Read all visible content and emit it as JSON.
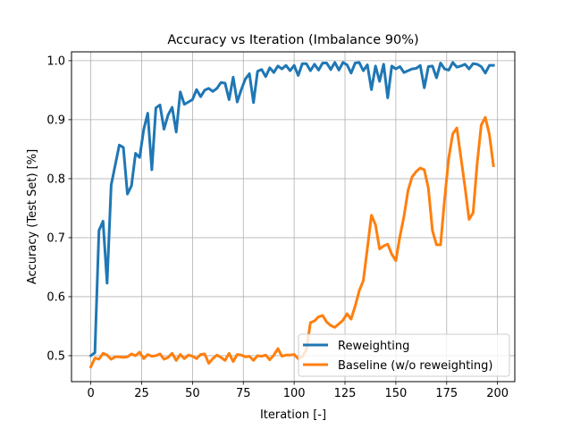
{
  "chart_data": {
    "type": "line",
    "title": "Accuracy vs Iteration (Imbalance 90%)",
    "xlabel": "Iteration [-]",
    "ylabel": "Accuracy (Test Set) [%]",
    "xlim": [
      -9.5,
      208.5
    ],
    "ylim": [
      0.456,
      1.015
    ],
    "xticks": [
      0,
      25,
      50,
      75,
      100,
      125,
      150,
      175,
      200
    ],
    "yticks": [
      0.5,
      0.6,
      0.7,
      0.8,
      0.9,
      1.0
    ],
    "xtick_labels": [
      "0",
      "25",
      "50",
      "75",
      "100",
      "125",
      "150",
      "175",
      "200"
    ],
    "ytick_labels": [
      "0.5",
      "0.6",
      "0.7",
      "0.8",
      "0.9",
      "1.0"
    ],
    "grid": true,
    "legend_position": "lower-right",
    "series": [
      {
        "name": "Reweighting",
        "color": "#1f77b4",
        "points": [
          [
            0,
            0.5
          ],
          [
            2,
            0.505
          ],
          [
            4,
            0.712
          ],
          [
            6,
            0.728
          ],
          [
            8,
            0.623
          ],
          [
            10,
            0.789
          ],
          [
            12,
            0.823
          ],
          [
            14,
            0.857
          ],
          [
            16,
            0.853
          ],
          [
            18,
            0.774
          ],
          [
            20,
            0.788
          ],
          [
            22,
            0.843
          ],
          [
            24,
            0.836
          ],
          [
            26,
            0.883
          ],
          [
            28,
            0.911
          ],
          [
            30,
            0.815
          ],
          [
            32,
            0.92
          ],
          [
            34,
            0.925
          ],
          [
            36,
            0.884
          ],
          [
            38,
            0.908
          ],
          [
            40,
            0.921
          ],
          [
            42,
            0.879
          ],
          [
            44,
            0.947
          ],
          [
            46,
            0.926
          ],
          [
            48,
            0.93
          ],
          [
            50,
            0.934
          ],
          [
            52,
            0.951
          ],
          [
            54,
            0.939
          ],
          [
            56,
            0.95
          ],
          [
            58,
            0.953
          ],
          [
            60,
            0.948
          ],
          [
            62,
            0.953
          ],
          [
            64,
            0.963
          ],
          [
            66,
            0.962
          ],
          [
            68,
            0.934
          ],
          [
            70,
            0.972
          ],
          [
            72,
            0.93
          ],
          [
            74,
            0.951
          ],
          [
            76,
            0.969
          ],
          [
            78,
            0.978
          ],
          [
            80,
            0.929
          ],
          [
            82,
            0.982
          ],
          [
            84,
            0.985
          ],
          [
            86,
            0.973
          ],
          [
            88,
            0.988
          ],
          [
            90,
            0.98
          ],
          [
            92,
            0.991
          ],
          [
            94,
            0.986
          ],
          [
            96,
            0.992
          ],
          [
            98,
            0.983
          ],
          [
            100,
            0.992
          ],
          [
            102,
            0.975
          ],
          [
            104,
            0.995
          ],
          [
            106,
            0.995
          ],
          [
            108,
            0.983
          ],
          [
            110,
            0.994
          ],
          [
            112,
            0.984
          ],
          [
            114,
            0.996
          ],
          [
            116,
            0.996
          ],
          [
            118,
            0.985
          ],
          [
            120,
            0.997
          ],
          [
            122,
            0.984
          ],
          [
            124,
            0.997
          ],
          [
            126,
            0.993
          ],
          [
            128,
            0.979
          ],
          [
            130,
            0.996
          ],
          [
            132,
            0.997
          ],
          [
            134,
            0.983
          ],
          [
            136,
            0.993
          ],
          [
            138,
            0.951
          ],
          [
            140,
            0.991
          ],
          [
            142,
            0.965
          ],
          [
            144,
            0.994
          ],
          [
            146,
            0.937
          ],
          [
            148,
            0.991
          ],
          [
            150,
            0.986
          ],
          [
            152,
            0.99
          ],
          [
            154,
            0.98
          ],
          [
            156,
            0.983
          ],
          [
            158,
            0.986
          ],
          [
            160,
            0.987
          ],
          [
            162,
            0.992
          ],
          [
            164,
            0.954
          ],
          [
            166,
            0.99
          ],
          [
            168,
            0.991
          ],
          [
            170,
            0.971
          ],
          [
            172,
            0.996
          ],
          [
            174,
            0.986
          ],
          [
            176,
            0.984
          ],
          [
            178,
            0.997
          ],
          [
            180,
            0.989
          ],
          [
            182,
            0.991
          ],
          [
            184,
            0.994
          ],
          [
            186,
            0.986
          ],
          [
            188,
            0.995
          ],
          [
            190,
            0.994
          ],
          [
            192,
            0.99
          ],
          [
            194,
            0.979
          ],
          [
            196,
            0.992
          ],
          [
            198,
            0.992
          ]
        ]
      },
      {
        "name": "Baseline (w/o reweighting)",
        "color": "#ff7f0e",
        "points": [
          [
            0,
            0.481
          ],
          [
            2,
            0.496
          ],
          [
            4,
            0.494
          ],
          [
            6,
            0.504
          ],
          [
            8,
            0.501
          ],
          [
            10,
            0.494
          ],
          [
            12,
            0.498
          ],
          [
            14,
            0.498
          ],
          [
            16,
            0.497
          ],
          [
            18,
            0.498
          ],
          [
            20,
            0.503
          ],
          [
            22,
            0.5
          ],
          [
            24,
            0.506
          ],
          [
            26,
            0.495
          ],
          [
            28,
            0.502
          ],
          [
            30,
            0.499
          ],
          [
            32,
            0.5
          ],
          [
            34,
            0.503
          ],
          [
            36,
            0.494
          ],
          [
            38,
            0.497
          ],
          [
            40,
            0.504
          ],
          [
            42,
            0.492
          ],
          [
            44,
            0.502
          ],
          [
            46,
            0.495
          ],
          [
            48,
            0.501
          ],
          [
            50,
            0.499
          ],
          [
            52,
            0.495
          ],
          [
            54,
            0.502
          ],
          [
            56,
            0.503
          ],
          [
            58,
            0.487
          ],
          [
            60,
            0.495
          ],
          [
            62,
            0.501
          ],
          [
            64,
            0.497
          ],
          [
            66,
            0.492
          ],
          [
            68,
            0.504
          ],
          [
            70,
            0.49
          ],
          [
            72,
            0.502
          ],
          [
            74,
            0.501
          ],
          [
            76,
            0.498
          ],
          [
            78,
            0.499
          ],
          [
            80,
            0.492
          ],
          [
            82,
            0.5
          ],
          [
            84,
            0.499
          ],
          [
            86,
            0.501
          ],
          [
            88,
            0.493
          ],
          [
            90,
            0.501
          ],
          [
            92,
            0.512
          ],
          [
            94,
            0.499
          ],
          [
            96,
            0.501
          ],
          [
            98,
            0.501
          ],
          [
            100,
            0.502
          ],
          [
            102,
            0.495
          ],
          [
            104,
            0.498
          ],
          [
            106,
            0.51
          ],
          [
            108,
            0.556
          ],
          [
            110,
            0.559
          ],
          [
            112,
            0.566
          ],
          [
            114,
            0.568
          ],
          [
            116,
            0.557
          ],
          [
            118,
            0.551
          ],
          [
            120,
            0.548
          ],
          [
            122,
            0.554
          ],
          [
            124,
            0.56
          ],
          [
            126,
            0.571
          ],
          [
            128,
            0.562
          ],
          [
            130,
            0.584
          ],
          [
            132,
            0.61
          ],
          [
            134,
            0.627
          ],
          [
            136,
            0.682
          ],
          [
            138,
            0.738
          ],
          [
            140,
            0.722
          ],
          [
            142,
            0.681
          ],
          [
            144,
            0.686
          ],
          [
            146,
            0.689
          ],
          [
            148,
            0.672
          ],
          [
            150,
            0.661
          ],
          [
            152,
            0.702
          ],
          [
            154,
            0.736
          ],
          [
            156,
            0.78
          ],
          [
            158,
            0.803
          ],
          [
            160,
            0.812
          ],
          [
            162,
            0.818
          ],
          [
            164,
            0.815
          ],
          [
            166,
            0.784
          ],
          [
            168,
            0.712
          ],
          [
            170,
            0.688
          ],
          [
            172,
            0.688
          ],
          [
            174,
            0.766
          ],
          [
            176,
            0.835
          ],
          [
            178,
            0.876
          ],
          [
            180,
            0.886
          ],
          [
            182,
            0.836
          ],
          [
            184,
            0.786
          ],
          [
            186,
            0.731
          ],
          [
            188,
            0.742
          ],
          [
            190,
            0.826
          ],
          [
            192,
            0.891
          ],
          [
            194,
            0.904
          ],
          [
            196,
            0.875
          ],
          [
            198,
            0.822
          ]
        ]
      }
    ]
  }
}
